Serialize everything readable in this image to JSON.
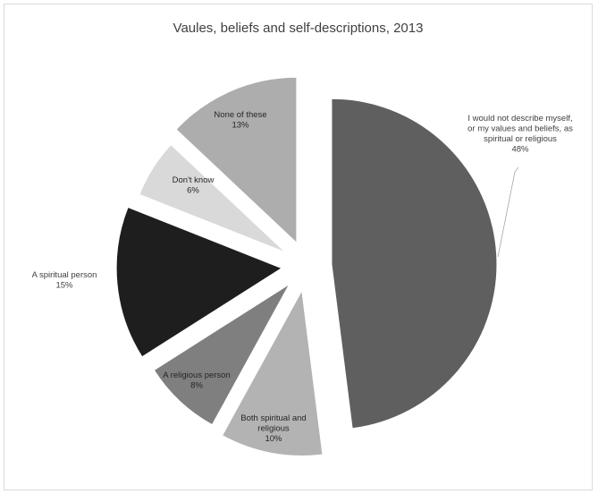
{
  "chart_data": {
    "type": "pie",
    "title": "Vaules, beliefs and self-descriptions, 2013",
    "exploded": true,
    "legend": "none",
    "slices": [
      {
        "label_lines": [
          "I would not describe myself,",
          "or my values and beliefs, as",
          "spiritual or religious"
        ],
        "value": 48,
        "value_text": "48%",
        "color": "#5f5f5f",
        "label_color": "#404040"
      },
      {
        "label_lines": [
          "Both spiritual and",
          "religious"
        ],
        "value": 10,
        "value_text": "10%",
        "color": "#b3b3b3",
        "label_color": "#262626"
      },
      {
        "label_lines": [
          "A religious person"
        ],
        "value": 8,
        "value_text": "8%",
        "color": "#7f7f7f",
        "label_color": "#262626"
      },
      {
        "label_lines": [
          "A spiritual person"
        ],
        "value": 15,
        "value_text": "15%",
        "color": "#1e1e1e",
        "label_color": "#404040"
      },
      {
        "label_lines": [
          "Don't know"
        ],
        "value": 6,
        "value_text": "6%",
        "color": "#d9d9d9",
        "label_color": "#262626"
      },
      {
        "label_lines": [
          "None of these"
        ],
        "value": 13,
        "value_text": "13%",
        "color": "#adadad",
        "label_color": "#262626"
      }
    ]
  }
}
